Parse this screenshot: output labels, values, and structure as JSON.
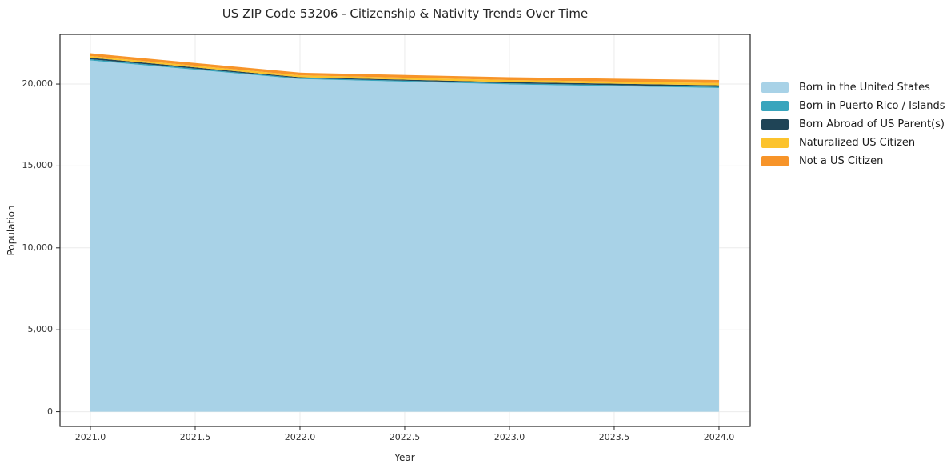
{
  "title": "US ZIP Code 53206 - Citizenship & Nativity Trends Over Time",
  "axes": {
    "x_label": "Year",
    "y_label": "Population",
    "x_tick_labels": [
      "2021.0",
      "2021.5",
      "2022.0",
      "2022.5",
      "2023.0",
      "2023.5",
      "2024.0"
    ],
    "y_tick_labels": [
      "0",
      "5,000",
      "10,000",
      "15,000",
      "20,000"
    ]
  },
  "legend": {
    "position": "right-outside-top",
    "entries": [
      "Born in the United States",
      "Born in Puerto Rico / Islands",
      "Born Abroad of US Parent(s)",
      "Naturalized US Citizen",
      "Not a US Citizen"
    ]
  },
  "colors": {
    "grid": "#ebebeb",
    "spine": "#262626",
    "background": "#ffffff"
  },
  "chart_data": {
    "type": "area",
    "stacked": true,
    "title": "US ZIP Code 53206 - Citizenship & Nativity Trends Over Time",
    "xlabel": "Year",
    "ylabel": "Population",
    "x": [
      2021,
      2022,
      2023,
      2024
    ],
    "series": [
      {
        "name": "Born in the United States",
        "color": "#a8d2e7",
        "values": [
          21440,
          20310,
          19980,
          19760
        ]
      },
      {
        "name": "Born in Puerto Rico / Islands",
        "color": "#38a5bd",
        "values": [
          75,
          55,
          65,
          70
        ]
      },
      {
        "name": "Born Abroad of US Parent(s)",
        "color": "#1f4456",
        "values": [
          95,
          55,
          75,
          95
        ]
      },
      {
        "name": "Naturalized US Citizen",
        "color": "#fcc32c",
        "values": [
          100,
          115,
          125,
          135
        ]
      },
      {
        "name": "Not a US Citizen",
        "color": "#f79429",
        "values": [
          170,
          160,
          170,
          185
        ]
      }
    ],
    "totals": [
      21880,
      20695,
      20415,
      20245
    ],
    "xlim": [
      2020.855,
      2024.149
    ],
    "ylim": [
      -900,
      23030
    ],
    "x_tick_values": [
      2021.0,
      2021.5,
      2022.0,
      2022.5,
      2023.0,
      2023.5,
      2024.0
    ],
    "y_tick_values": [
      0,
      5000,
      10000,
      15000,
      20000
    ],
    "grid": true,
    "legend_position": "outside upper right"
  }
}
